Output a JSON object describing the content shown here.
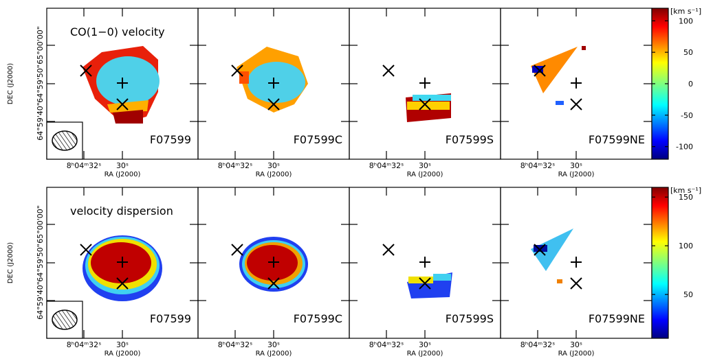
{
  "axis_labels": {
    "x": "RA (J2000)",
    "y": "DEC (J2000)"
  },
  "ra_ticks": [
    "8ʰ04ᵐ32ˢ",
    "30ˢ"
  ],
  "dec_ticks": [
    "65°00'00\"",
    "64°59'50\"",
    "64°59'40\""
  ],
  "panel_labels": [
    "F07599",
    "F07599C",
    "F07599S",
    "F07599NE"
  ],
  "rows": [
    {
      "title": "CO(1−0) velocity",
      "colorbar": {
        "unit": "[km s⁻¹]",
        "lim": [
          -120,
          120
        ],
        "ticks": [
          -100,
          -50,
          0,
          50,
          100
        ]
      }
    },
    {
      "title": "velocity dispersion",
      "colorbar": {
        "unit": "[km s⁻¹]",
        "lim": [
          5,
          160
        ],
        "ticks": [
          50,
          100,
          150
        ]
      }
    }
  ]
}
